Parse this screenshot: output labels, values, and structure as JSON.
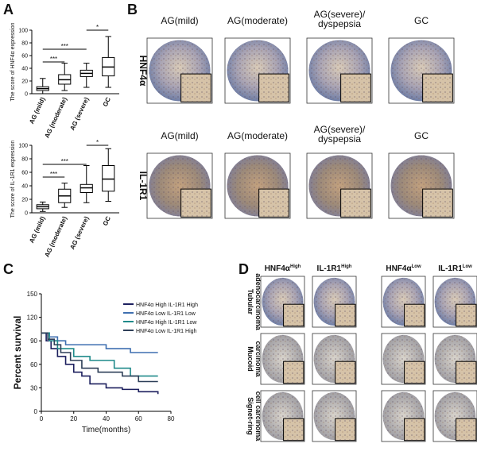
{
  "panels": {
    "a": "A",
    "b": "B",
    "c": "C",
    "d": "D"
  },
  "chart_data": [
    {
      "type": "box",
      "ylabel": "The score of HNF4α  expression",
      "categories": [
        "AG (mild)",
        "AG (moderate)",
        "AG (severe)",
        "GC"
      ],
      "boxes": [
        {
          "min": 0,
          "q1": 5,
          "median": 8,
          "q3": 11,
          "max": 24
        },
        {
          "min": 5,
          "q1": 15,
          "median": 22,
          "q3": 30,
          "max": 48
        },
        {
          "min": 10,
          "q1": 27,
          "median": 32,
          "q3": 37,
          "max": 48
        },
        {
          "min": 10,
          "q1": 28,
          "median": 42,
          "q3": 57,
          "max": 90
        }
      ],
      "ylim": [
        0,
        100
      ],
      "yticks": [
        0,
        20,
        40,
        60,
        80,
        100
      ],
      "annotations": [
        "***",
        "***",
        "*"
      ]
    },
    {
      "type": "box",
      "ylabel": "The score of  IL-1R1 expression",
      "categories": [
        "AG (mild)",
        "AG (moderate)",
        "AG (severe)",
        "GC"
      ],
      "boxes": [
        {
          "min": 2,
          "q1": 6,
          "median": 9,
          "q3": 12,
          "max": 16
        },
        {
          "min": 8,
          "q1": 15,
          "median": 25,
          "q3": 35,
          "max": 44
        },
        {
          "min": 15,
          "q1": 30,
          "median": 37,
          "q3": 42,
          "max": 70
        },
        {
          "min": 17,
          "q1": 32,
          "median": 50,
          "q3": 70,
          "max": 95
        }
      ],
      "ylim": [
        0,
        100
      ],
      "yticks": [
        0,
        20,
        40,
        60,
        80,
        100
      ],
      "annotations": [
        "***",
        "***",
        "*"
      ]
    },
    {
      "type": "line",
      "ylabel": "Percent survival",
      "xlabel": "Time(months)",
      "xlim": [
        0,
        80
      ],
      "xticks": [
        0,
        20,
        40,
        60,
        80
      ],
      "ylim": [
        0,
        150
      ],
      "yticks": [
        0,
        30,
        60,
        90,
        120,
        150
      ],
      "series": [
        {
          "name": "HNF4α High IL-1R1 High",
          "color": "#1c1f5e",
          "x": [
            0,
            3,
            6,
            10,
            15,
            20,
            25,
            30,
            40,
            50,
            60,
            72
          ],
          "values": [
            100,
            90,
            80,
            70,
            60,
            50,
            45,
            35,
            30,
            28,
            25,
            22
          ]
        },
        {
          "name": "HNF4α Low IL-1R1 Low",
          "color": "#3f6fb0",
          "x": [
            0,
            5,
            10,
            15,
            40,
            55,
            72
          ],
          "values": [
            100,
            95,
            90,
            85,
            80,
            75,
            75
          ]
        },
        {
          "name": "HNF4α High IL-1R1 Low",
          "color": "#1f8a8a",
          "x": [
            0,
            5,
            10,
            20,
            30,
            45,
            55,
            72
          ],
          "values": [
            100,
            90,
            80,
            70,
            65,
            55,
            45,
            45
          ]
        },
        {
          "name": "HNF4α Low IL-1R1 High",
          "color": "#2e3f58",
          "x": [
            0,
            4,
            8,
            12,
            18,
            25,
            35,
            50,
            60,
            72
          ],
          "values": [
            100,
            92,
            85,
            75,
            65,
            55,
            50,
            45,
            38,
            38
          ]
        }
      ]
    }
  ],
  "panel_b": {
    "rows": [
      "HNF4α",
      "IL-1R1"
    ],
    "headers": [
      "AG(mild)",
      "AG(moderate)",
      [
        "AG(severe)/",
        "dyspepsia"
      ],
      "GC"
    ]
  },
  "panel_d": {
    "headers": [
      {
        "base": "HNF4α",
        "sup": "High"
      },
      {
        "base": "IL-1R1",
        "sup": "High"
      },
      {
        "base": "HNF4α",
        "sup": "Low"
      },
      {
        "base": "IL-1R1",
        "sup": "Low"
      }
    ],
    "rows": [
      [
        "Tubular",
        "adenocarcinoma"
      ],
      [
        "Mucoid",
        "carcinoma"
      ],
      [
        "Signet-ring",
        "cell carcinoma"
      ]
    ]
  }
}
